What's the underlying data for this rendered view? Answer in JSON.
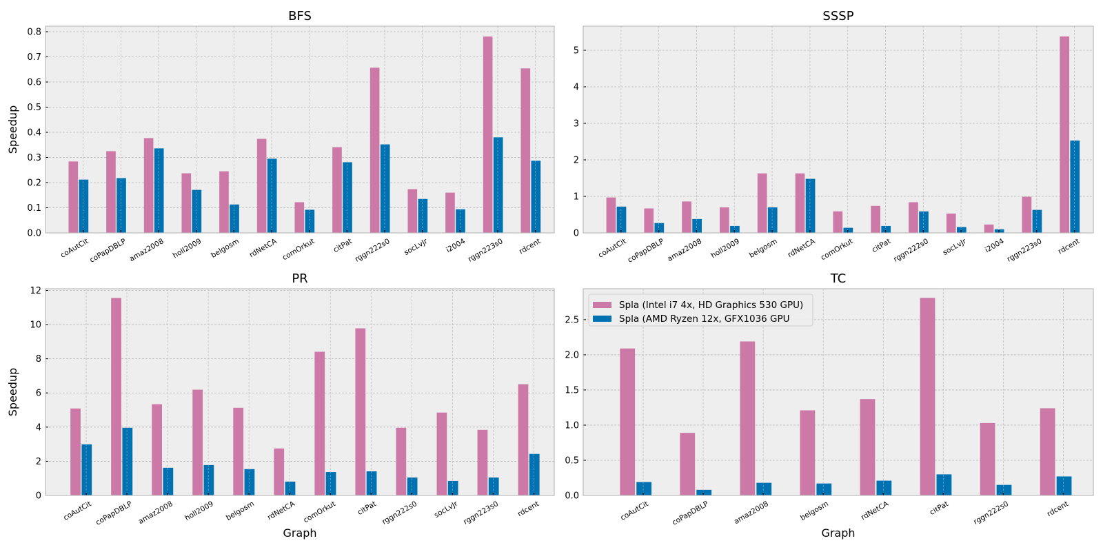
{
  "figure": {
    "colors": {
      "series_1": "#CC79A7",
      "series_2": "#0072B2",
      "axes_background": "#EEEEEE",
      "grid": "#B8B8B8",
      "spine": "#BCBCBC"
    }
  },
  "chart_data": [
    {
      "id": "bfs",
      "type": "bar",
      "title": "BFS",
      "xlabel": "",
      "ylabel": "Speedup",
      "ylim": [
        0,
        0.822
      ],
      "yticks": [
        0.0,
        0.1,
        0.2,
        0.3,
        0.4,
        0.5,
        0.6,
        0.7,
        0.8
      ],
      "ytick_labels": [
        "0.0",
        "0.1",
        "0.2",
        "0.3",
        "0.4",
        "0.5",
        "0.6",
        "0.7",
        "0.8"
      ],
      "grid": true,
      "categories": [
        "coAutCit",
        "coPapDBLP",
        "amaz2008",
        "holl2009",
        "belgosm",
        "rdNetCA",
        "comOrkut",
        "citPat",
        "rggn222s0",
        "socLvJr",
        "i2004",
        "rggn223s0",
        "rdcent"
      ],
      "series": [
        {
          "name": "Spla (Intel i7 4x, HD Graphics 530 GPU)",
          "values": [
            0.284,
            0.325,
            0.377,
            0.237,
            0.245,
            0.374,
            0.122,
            0.341,
            0.657,
            0.174,
            0.16,
            0.781,
            0.654
          ]
        },
        {
          "name": "Spla (AMD Ryzen 12x, GFX1036 GPU",
          "values": [
            0.212,
            0.218,
            0.336,
            0.171,
            0.113,
            0.295,
            0.092,
            0.281,
            0.352,
            0.135,
            0.094,
            0.38,
            0.287
          ]
        }
      ]
    },
    {
      "id": "sssp",
      "type": "bar",
      "title": "SSSP",
      "xlabel": "",
      "ylabel": "",
      "ylim": [
        0,
        5.66
      ],
      "yticks": [
        0,
        1,
        2,
        3,
        4,
        5
      ],
      "ytick_labels": [
        "0",
        "1",
        "2",
        "3",
        "4",
        "5"
      ],
      "grid": true,
      "categories": [
        "coAutCit",
        "coPapDBLP",
        "amaz2008",
        "holl2009",
        "belgosm",
        "rdNetCA",
        "comOrkut",
        "citPat",
        "rggn222s0",
        "socLvJr",
        "i2004",
        "rggn223s0",
        "rdcent"
      ],
      "series": [
        {
          "name": "Spla (Intel i7 4x, HD Graphics 530 GPU)",
          "values": [
            0.97,
            0.67,
            0.86,
            0.7,
            1.63,
            1.63,
            0.59,
            0.74,
            0.84,
            0.53,
            0.23,
            0.99,
            5.38
          ]
        },
        {
          "name": "Spla (AMD Ryzen 12x, GFX1036 GPU",
          "values": [
            0.72,
            0.27,
            0.38,
            0.19,
            0.7,
            1.48,
            0.14,
            0.19,
            0.59,
            0.16,
            0.1,
            0.63,
            2.53
          ]
        }
      ]
    },
    {
      "id": "pr",
      "type": "bar",
      "title": "PR",
      "xlabel": "Graph",
      "ylabel": "Speedup",
      "ylim": [
        0,
        12.1
      ],
      "yticks": [
        0,
        2,
        4,
        6,
        8,
        10,
        12
      ],
      "ytick_labels": [
        "0",
        "2",
        "4",
        "6",
        "8",
        "10",
        "12"
      ],
      "grid": true,
      "categories": [
        "coAutCit",
        "coPapDBLP",
        "amaz2008",
        "holl2009",
        "belgosm",
        "rdNetCA",
        "comOrkut",
        "citPat",
        "rggn222s0",
        "socLvJr",
        "rggn223s0",
        "rdcent"
      ],
      "series": [
        {
          "name": "Spla (Intel i7 4x, HD Graphics 530 GPU)",
          "values": [
            5.09,
            11.56,
            5.34,
            6.19,
            5.13,
            2.75,
            8.41,
            9.78,
            3.96,
            4.85,
            3.84,
            6.51
          ]
        },
        {
          "name": "Spla (AMD Ryzen 12x, GFX1036 GPU",
          "values": [
            2.99,
            3.96,
            1.62,
            1.78,
            1.54,
            0.81,
            1.37,
            1.41,
            1.05,
            0.85,
            1.05,
            2.43
          ]
        }
      ]
    },
    {
      "id": "tc",
      "type": "bar",
      "title": "TC",
      "xlabel": "Graph",
      "ylabel": "",
      "ylim": [
        0,
        2.94
      ],
      "yticks": [
        0.0,
        0.5,
        1.0,
        1.5,
        2.0,
        2.5
      ],
      "ytick_labels": [
        "0.0",
        "0.5",
        "1.0",
        "1.5",
        "2.0",
        "2.5"
      ],
      "grid": true,
      "legend": {
        "placement": "top-left",
        "entries": [
          "Spla (Intel i7 4x, HD Graphics 530 GPU)",
          "Spla (AMD Ryzen 12x, GFX1036 GPU"
        ]
      },
      "categories": [
        "coAutCit",
        "coPapDBLP",
        "amaz2008",
        "belgosm",
        "rdNetCA",
        "citPat",
        "rggn222s0",
        "rdcent"
      ],
      "series": [
        {
          "name": "Spla (Intel i7 4x, HD Graphics 530 GPU)",
          "values": [
            2.09,
            0.89,
            2.19,
            1.21,
            1.37,
            2.81,
            1.03,
            1.24
          ]
        },
        {
          "name": "Spla (AMD Ryzen 12x, GFX1036 GPU",
          "values": [
            0.19,
            0.08,
            0.18,
            0.17,
            0.21,
            0.3,
            0.15,
            0.27
          ]
        }
      ]
    }
  ]
}
